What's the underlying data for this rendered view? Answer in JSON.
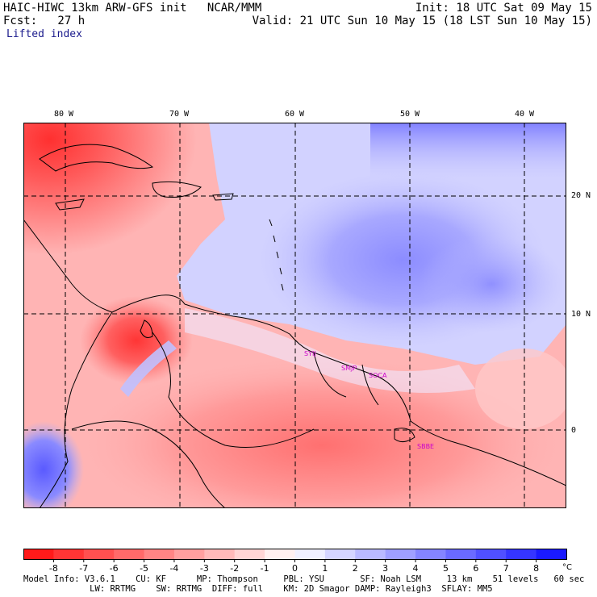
{
  "header": {
    "model_title": "HAIC-HIWC 13km ARW-GFS init   NCAR/MMM",
    "forecast": "Fcst:   27 h",
    "init": "Init: 18 UTC Sat 09 May 15",
    "valid": "Valid: 21 UTC Sun 10 May 15 (18 LST Sun 10 May 15)",
    "field_name": "Lifted index"
  },
  "map": {
    "lon_labels": [
      "80 W",
      "70 W",
      "60 W",
      "50 W",
      "40 W"
    ],
    "lat_labels": [
      "20 N",
      "10 N",
      "0"
    ],
    "stations": [
      "SYIJ",
      "SMJP",
      "SOCA",
      "SBBE"
    ],
    "station_color": "#cc00cc",
    "gridline_style": "dashed"
  },
  "colorbar": {
    "tick_labels": [
      "-8",
      "-7",
      "-6",
      "-5",
      "-4",
      "-3",
      "-2",
      "-1",
      "0",
      "1",
      "2",
      "3",
      "4",
      "5",
      "6",
      "7",
      "8"
    ],
    "unit": "°C",
    "colors": [
      "#ff1a1a",
      "#ff3535",
      "#ff5050",
      "#ff6a6a",
      "#ff8585",
      "#ffa0a0",
      "#ffbaba",
      "#ffd5d5",
      "#fff0f0",
      "#f0f0ff",
      "#d5d5ff",
      "#babaff",
      "#a0a0ff",
      "#8585ff",
      "#6a6aff",
      "#5050ff",
      "#3535ff",
      "#1a1aff"
    ]
  },
  "model_info": {
    "line1": "Model Info: V3.6.1    CU: KF      MP: Thompson     PBL: YSU       SF: Noah LSM     13 km    51 levels   60 sec",
    "line2": "             LW: RRTMG    SW: RRTMG  DIFF: full    KM: 2D Smagor DAMP: Rayleigh3  SFLAY: MM5"
  }
}
